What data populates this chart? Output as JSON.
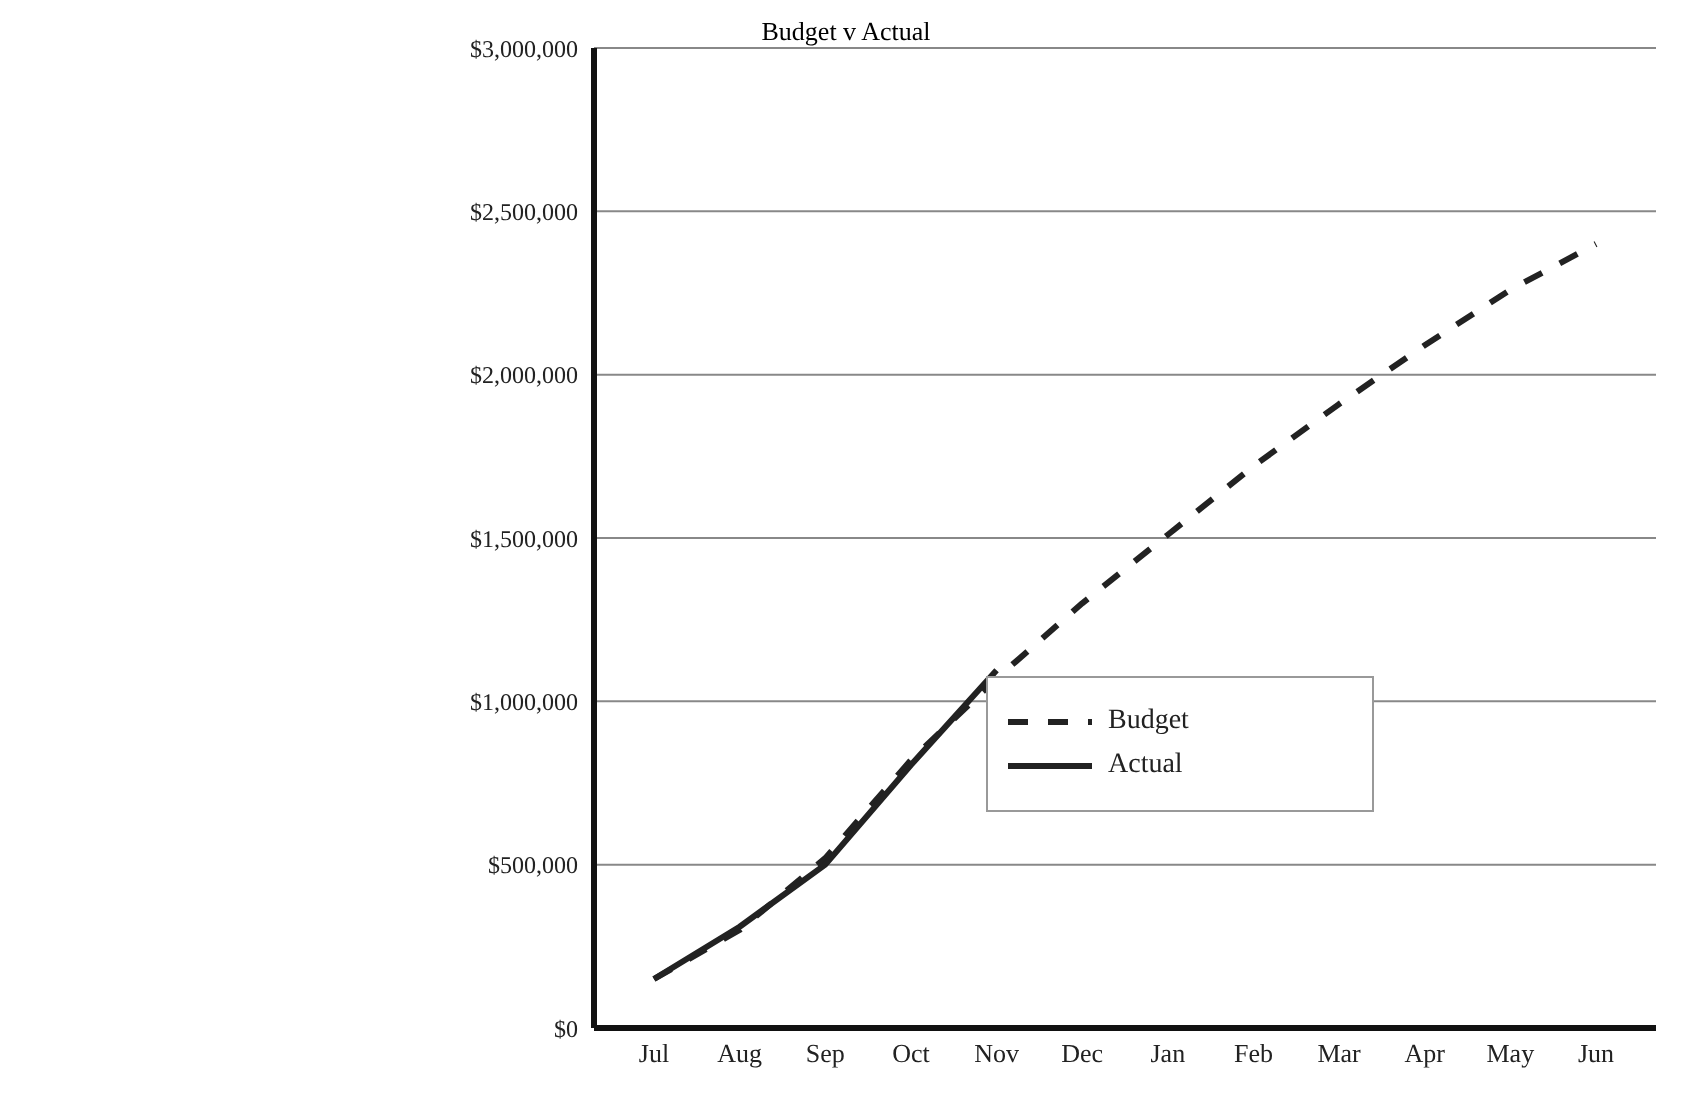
{
  "chart_data": {
    "type": "line",
    "title": "Budget v Actual",
    "categories": [
      "Jul",
      "Aug",
      "Sep",
      "Oct",
      "Nov",
      "Dec",
      "Jan",
      "Feb",
      "Mar",
      "Apr",
      "May",
      "Jun"
    ],
    "series": [
      {
        "name": "Budget",
        "color": "#222222",
        "line_style": "dashed",
        "values": [
          150000,
          300000,
          520000,
          820000,
          1070000,
          1300000,
          1510000,
          1720000,
          1910000,
          2090000,
          2260000,
          2400000
        ]
      },
      {
        "name": "Actual",
        "color": "#222222",
        "line_style": "solid",
        "values": [
          150000,
          310000,
          500000,
          805000,
          1095000,
          null,
          null,
          null,
          null,
          null,
          null,
          null
        ]
      }
    ],
    "ylim": [
      0,
      3000000
    ],
    "yticks": [
      {
        "value": 0,
        "label": "$0"
      },
      {
        "value": 500000,
        "label": "$500,000"
      },
      {
        "value": 1000000,
        "label": "$1,000,000"
      },
      {
        "value": 1500000,
        "label": "$1,500,000"
      },
      {
        "value": 2000000,
        "label": "$2,000,000"
      },
      {
        "value": 2500000,
        "label": "$2,500,000"
      },
      {
        "value": 3000000,
        "label": "$3,000,000"
      }
    ],
    "grid": "y",
    "legend": "bottom right",
    "marker": "none"
  }
}
